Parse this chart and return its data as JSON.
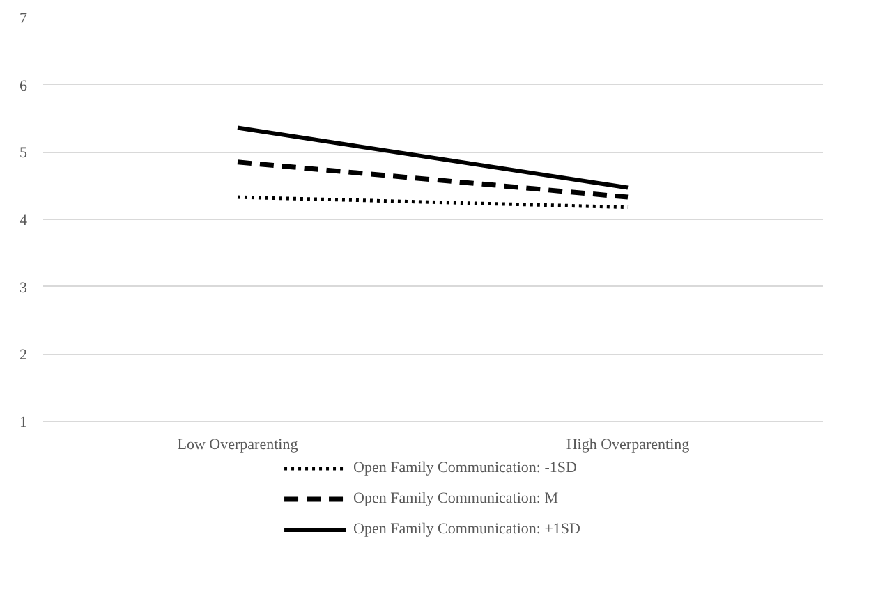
{
  "chart_data": {
    "type": "line",
    "categories": [
      "Low Overparenting",
      "High Overparenting"
    ],
    "series": [
      {
        "name": "Open Family Communication: -1SD",
        "color": "#000000",
        "line_style": "dotted",
        "values": [
          4.33,
          4.18
        ]
      },
      {
        "name": "Open Family Communication: M",
        "color": "#000000",
        "line_style": "dashed",
        "values": [
          4.85,
          4.33
        ]
      },
      {
        "name": "Open Family Communication: +1SD",
        "color": "#000000",
        "line_style": "solid",
        "values": [
          5.36,
          4.47
        ]
      }
    ],
    "ylim": [
      1,
      7
    ],
    "yticks": [
      1,
      2,
      3,
      4,
      5,
      6,
      7
    ],
    "grid": "y",
    "legend": "bottom",
    "marker": "none"
  }
}
